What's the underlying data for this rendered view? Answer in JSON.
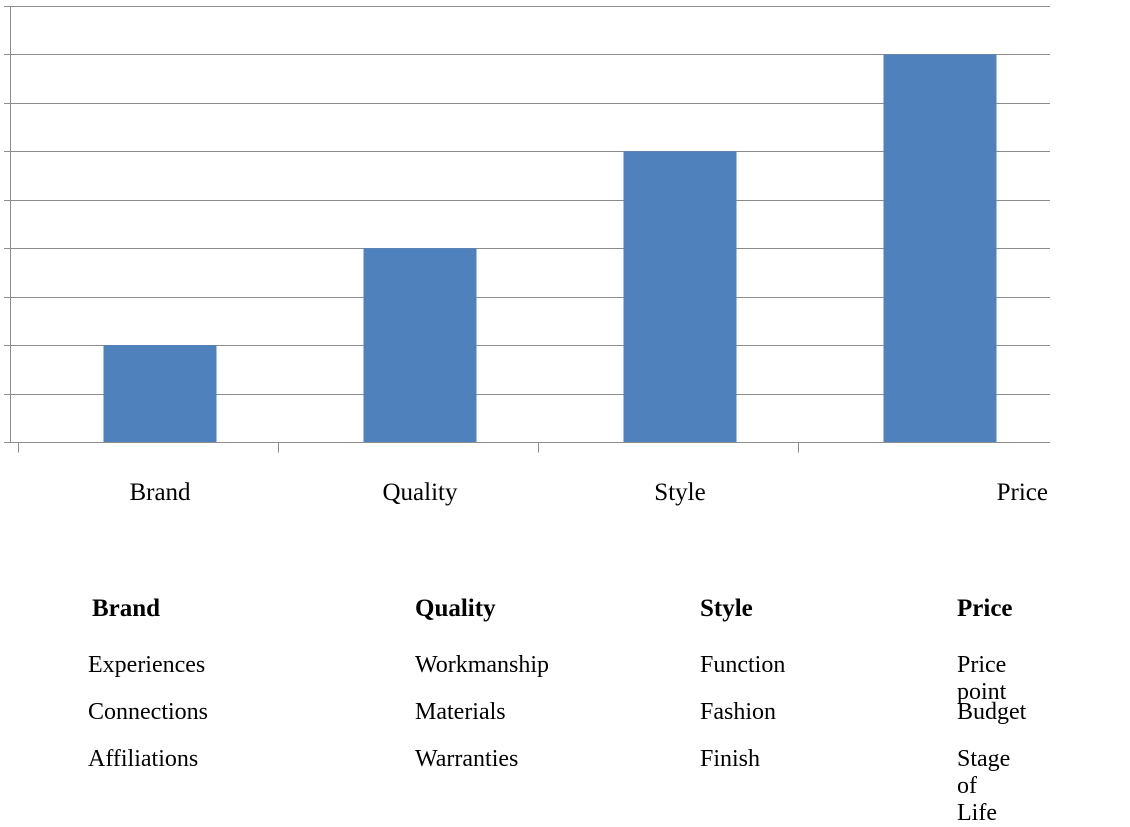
{
  "chart_data": {
    "type": "bar",
    "categories": [
      "Brand",
      "Quality",
      "Style",
      "Price"
    ],
    "values": [
      2,
      4,
      6,
      8
    ],
    "ylim": [
      0,
      9
    ],
    "title": "",
    "xlabel": "",
    "ylabel": "",
    "grid": true,
    "bar_color": "#4f81bd"
  },
  "table": {
    "columns": [
      {
        "header": "Brand",
        "items": [
          "Experiences",
          "Connections",
          "Affiliations"
        ]
      },
      {
        "header": "Quality",
        "items": [
          "Workmanship",
          "Materials",
          "Warranties"
        ]
      },
      {
        "header": "Style",
        "items": [
          "Function",
          "Fashion",
          "Finish"
        ]
      },
      {
        "header": "Price",
        "items": [
          "Price point",
          "Budget",
          "Stage of Life"
        ]
      }
    ]
  }
}
